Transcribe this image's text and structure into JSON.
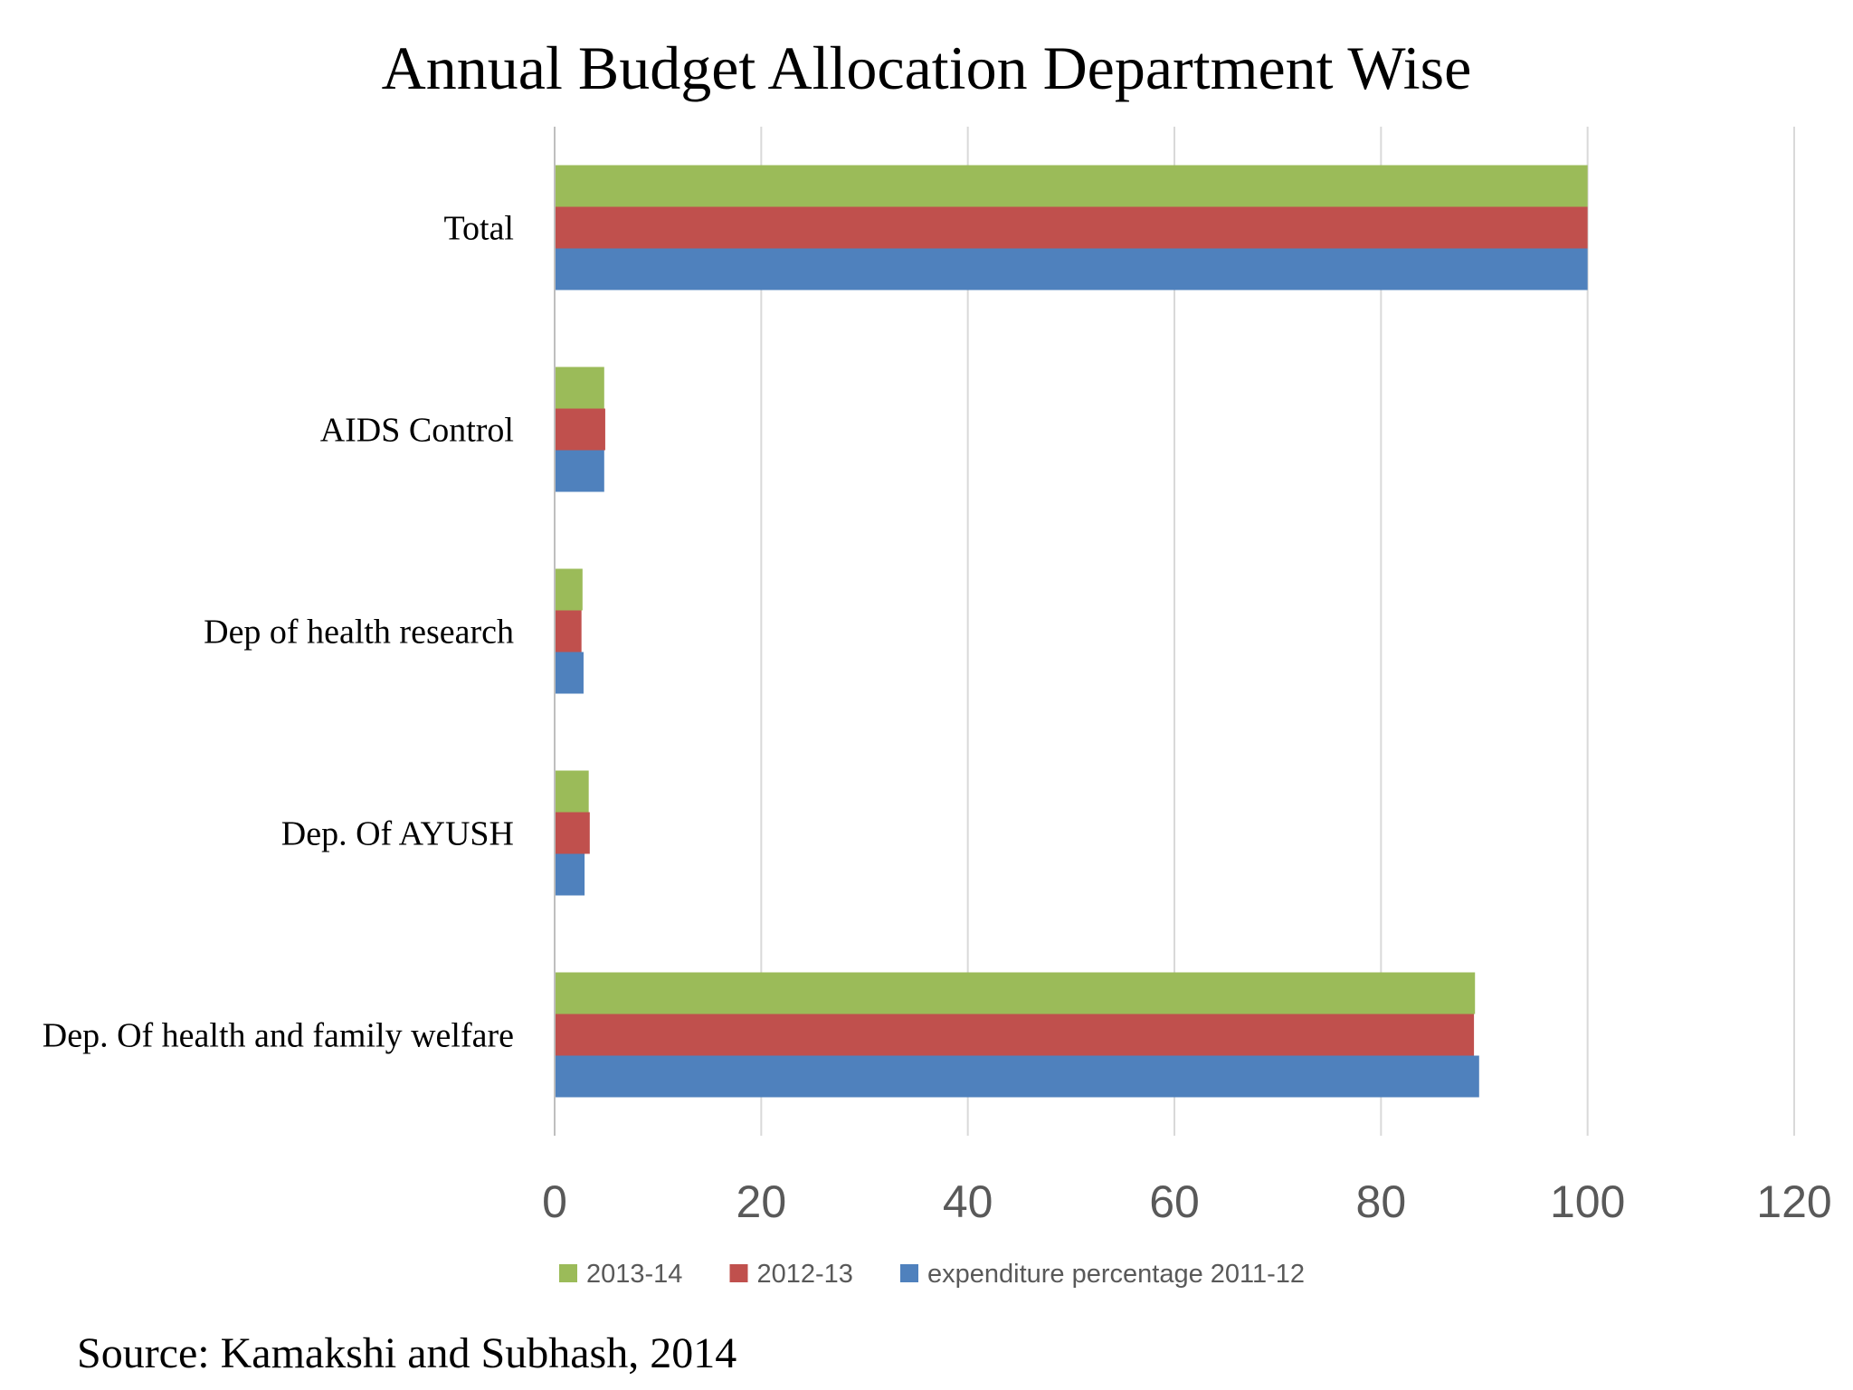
{
  "chart_data": {
    "type": "bar",
    "orientation": "horizontal",
    "title": "Annual Budget Allocation Department Wise",
    "categories": [
      "Total",
      "AIDS Control",
      "Dep of health research",
      "Dep. Of AYUSH",
      "Dep. Of health and family welfare"
    ],
    "series": [
      {
        "name": "2013-14",
        "color": "#9bbb59",
        "values": [
          100,
          4.8,
          2.7,
          3.3,
          89.1
        ]
      },
      {
        "name": "2012-13",
        "color": "#c0504d",
        "values": [
          100,
          4.9,
          2.6,
          3.4,
          89.0
        ]
      },
      {
        "name": "expenditure percentage 2011-12",
        "color": "#4f81bd",
        "values": [
          100,
          4.8,
          2.8,
          2.9,
          89.5
        ]
      }
    ],
    "xlim": [
      0,
      120
    ],
    "xticks": [
      0,
      20,
      40,
      60,
      80,
      100,
      120
    ],
    "grid": true,
    "legend_position": "bottom"
  },
  "source": "Source: Kamakshi and Subhash, 2014"
}
